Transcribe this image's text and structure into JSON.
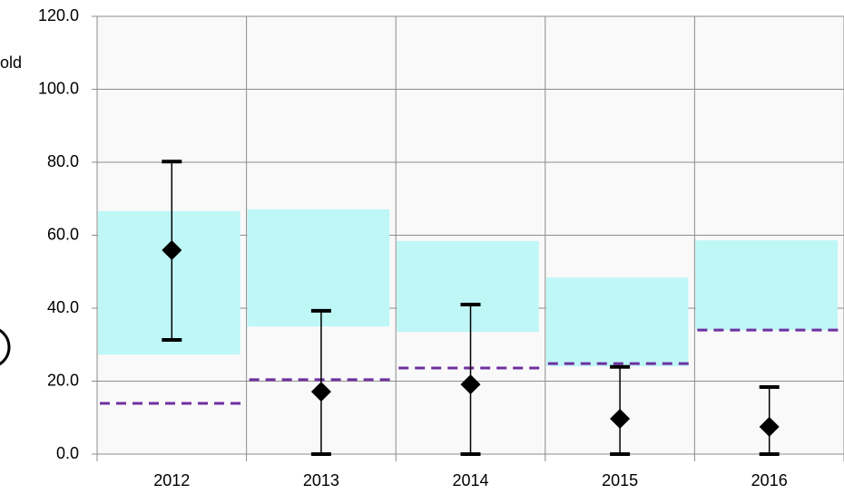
{
  "chart_data": {
    "type": "errorbar",
    "annotation": "old",
    "categories": [
      "2012",
      "2013",
      "2014",
      "2015",
      "2016"
    ],
    "values": [
      55.9,
      17.1,
      19.1,
      9.7,
      7.5
    ],
    "error_low": [
      31.3,
      0,
      0,
      0,
      0
    ],
    "error_high": [
      80.2,
      39.3,
      41.0,
      23.9,
      18.4
    ],
    "range_low": [
      27.3,
      35.0,
      33.5,
      24.1,
      34.0
    ],
    "range_high": [
      66.6,
      67.1,
      58.4,
      48.4,
      58.6
    ],
    "threshold": [
      13.9,
      20.4,
      23.6,
      24.8,
      34.0
    ],
    "color": "#000000",
    "range_color": "#bff7f7",
    "threshold_color": "#7030a0",
    "ylim": [
      0,
      120
    ],
    "yticks": [
      {
        "value": 0,
        "label": "0.0"
      },
      {
        "value": 20,
        "label": "20.0"
      },
      {
        "value": 40,
        "label": "40.0"
      },
      {
        "value": 60,
        "label": "60.0"
      },
      {
        "value": 80,
        "label": "80.0"
      },
      {
        "value": 100,
        "label": "100.0"
      },
      {
        "value": 120,
        "label": "120.0"
      }
    ],
    "grid": true
  }
}
